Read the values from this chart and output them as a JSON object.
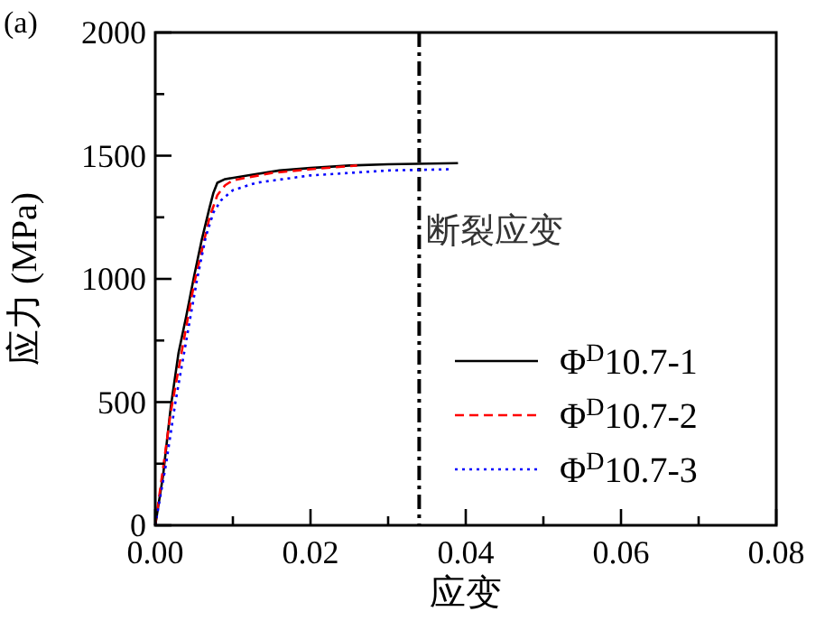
{
  "chart_data": {
    "type": "line",
    "xlabel": "应变",
    "ylabel": "应力 (MPa)",
    "annotations": [
      "(a)",
      {
        "text": "断裂应变",
        "x": 0.034,
        "y": 1150
      }
    ],
    "xlim": [
      0,
      0.08
    ],
    "ylim": [
      0,
      2000
    ],
    "xticks": [
      {
        "value": 0,
        "label": "0.00"
      },
      {
        "value": 0.01,
        "label": null
      },
      {
        "value": 0.02,
        "label": "0.02"
      },
      {
        "value": 0.03,
        "label": null
      },
      {
        "value": 0.04,
        "label": "0.04"
      },
      {
        "value": 0.05,
        "label": null
      },
      {
        "value": 0.06,
        "label": "0.06"
      },
      {
        "value": 0.07,
        "label": null
      },
      {
        "value": 0.08,
        "label": "0.08"
      }
    ],
    "yticks": [
      0,
      {
        "value": 250,
        "label": null
      },
      500,
      {
        "value": 750,
        "label": null
      },
      1000,
      {
        "value": 1250,
        "label": null
      },
      1500,
      {
        "value": 1750,
        "label": null
      },
      2000
    ],
    "ref_lines": [
      {
        "axis": "x",
        "value": 0.034,
        "color": "#000000",
        "line_style": "dashdot"
      }
    ],
    "legend": "right",
    "grid": false,
    "marker": "none",
    "series": [
      {
        "name": "Φ$^{D}$10.7-1",
        "color": "#000000",
        "line_style": "solid",
        "x": [
          0,
          0.001,
          0.002,
          0.003,
          0.004,
          0.005,
          0.006,
          0.007,
          0.0075,
          0.008,
          0.009,
          0.012,
          0.016,
          0.02,
          0.025,
          0.03,
          0.039
        ],
        "values": [
          0,
          200,
          480,
          700,
          850,
          1010,
          1160,
          1290,
          1350,
          1390,
          1405,
          1420,
          1440,
          1450,
          1460,
          1465,
          1470
        ]
      },
      {
        "name": "Φ$^{D}$10.7-2",
        "color": "#ff0000",
        "line_style": "dashed",
        "x": [
          0,
          0.002,
          0.005,
          0.007,
          0.008,
          0.009,
          0.01,
          0.015,
          0.02,
          0.026
        ],
        "values": [
          0,
          460,
          980,
          1250,
          1340,
          1380,
          1400,
          1430,
          1445,
          1460
        ]
      },
      {
        "name": "Φ$^{D}$10.7-3",
        "color": "#0000ff",
        "line_style": "dotted",
        "x": [
          0,
          0.0014,
          0.0026,
          0.0054,
          0.0065,
          0.0075,
          0.0085,
          0.01,
          0.013,
          0.02,
          0.03,
          0.038
        ],
        "values": [
          0,
          250,
          500,
          1000,
          1170,
          1270,
          1320,
          1360,
          1390,
          1420,
          1440,
          1445
        ]
      }
    ]
  }
}
